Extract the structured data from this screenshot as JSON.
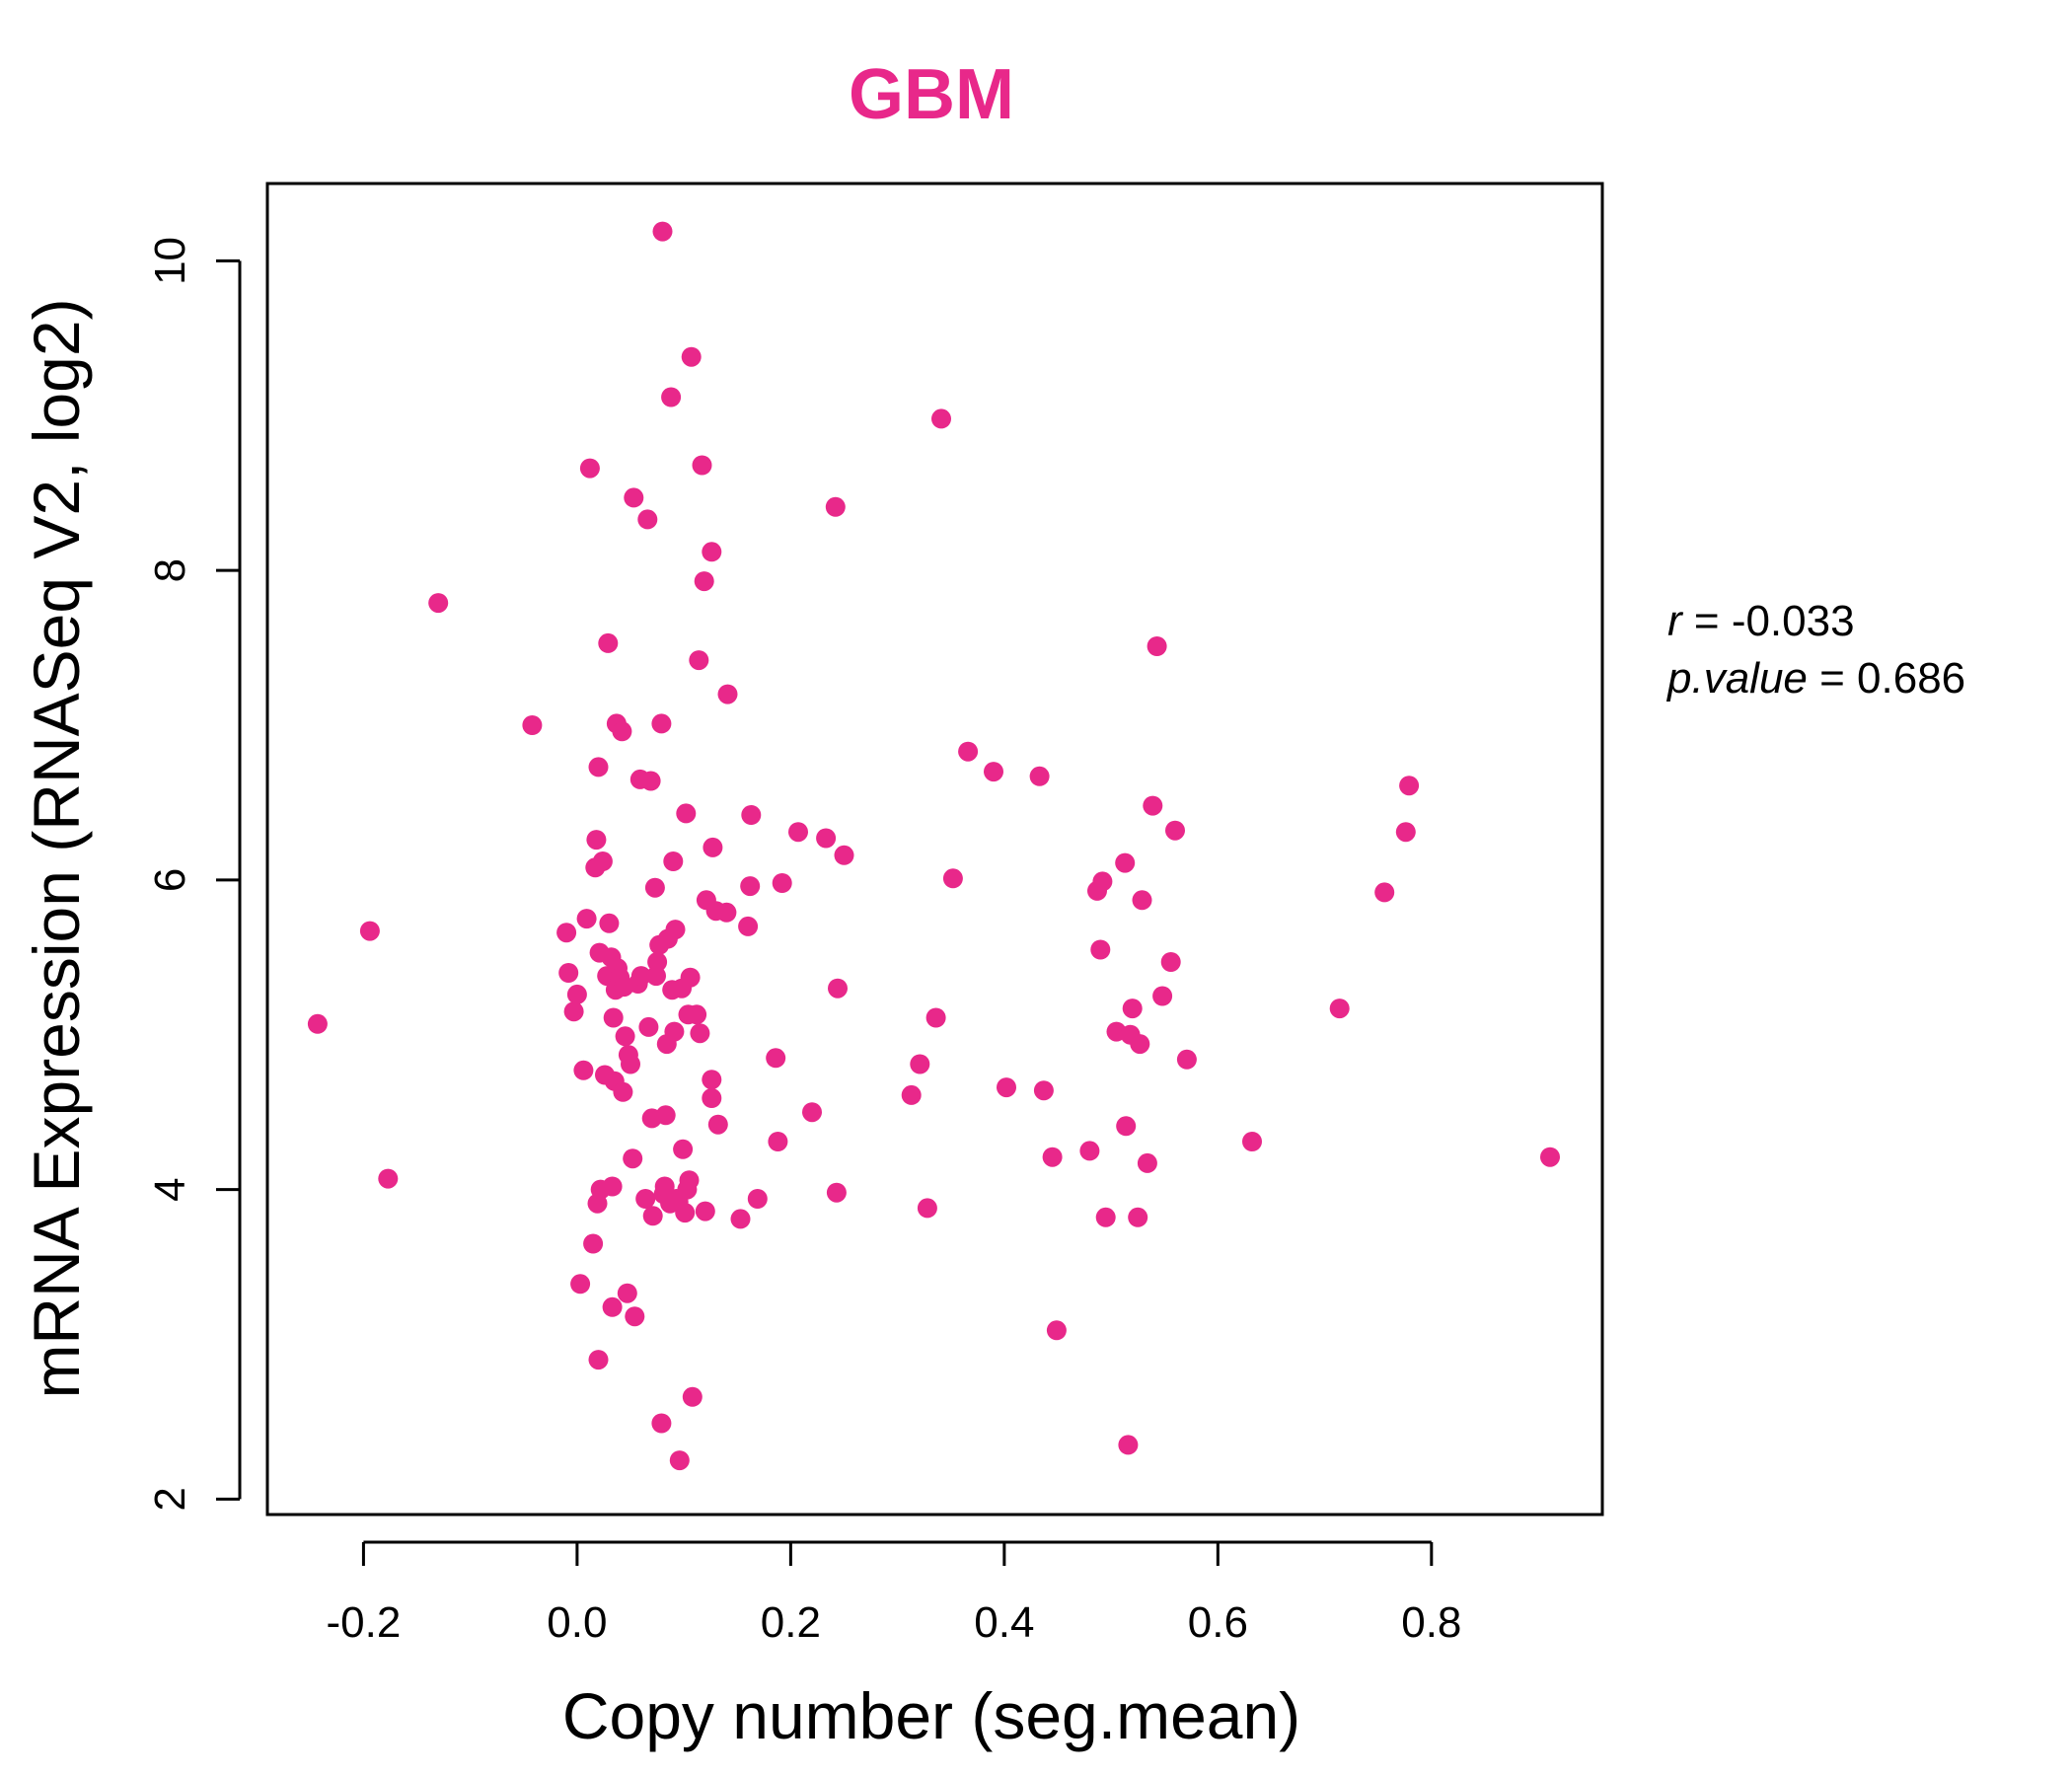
{
  "chart_data": {
    "type": "scatter",
    "title": "GBM",
    "xlabel": "Copy number (seg.mean)",
    "ylabel": "mRNA Expression (RNASeq V2, log2)",
    "xlim": [
      -0.29,
      0.96
    ],
    "ylim": [
      1.9,
      10.5
    ],
    "x_ticks": [
      -0.2,
      0.0,
      0.2,
      0.4,
      0.6,
      0.8
    ],
    "x_tick_labels": [
      "-0.2",
      "0.0",
      "0.2",
      "0.4",
      "0.6",
      "0.8"
    ],
    "y_ticks": [
      2,
      4,
      6,
      8,
      10
    ],
    "y_tick_labels": [
      "2",
      "4",
      "6",
      "8",
      "10"
    ],
    "grid": false,
    "colors": {
      "point": "#e8288a",
      "title": "#e8288a",
      "axis": "#000000"
    },
    "stats": {
      "r_label": "r",
      "r_value": "-0.033",
      "p_label": "p.value",
      "p_value": "0.686"
    },
    "points": [
      [
        -0.243,
        5.07
      ],
      [
        -0.194,
        5.67
      ],
      [
        -0.177,
        4.07
      ],
      [
        -0.13,
        7.79
      ],
      [
        -0.042,
        7.0
      ],
      [
        -0.01,
        5.66
      ],
      [
        -0.008,
        5.4
      ],
      [
        -0.003,
        5.15
      ],
      [
        0.0,
        5.26
      ],
      [
        0.003,
        3.39
      ],
      [
        0.006,
        4.77
      ],
      [
        0.009,
        5.75
      ],
      [
        0.012,
        8.66
      ],
      [
        0.015,
        3.65
      ],
      [
        0.017,
        6.08
      ],
      [
        0.018,
        6.26
      ],
      [
        0.019,
        3.91
      ],
      [
        0.02,
        2.9
      ],
      [
        0.02,
        6.73
      ],
      [
        0.021,
        5.53
      ],
      [
        0.022,
        4.0
      ],
      [
        0.024,
        6.12
      ],
      [
        0.026,
        4.74
      ],
      [
        0.028,
        5.38
      ],
      [
        0.029,
        7.53
      ],
      [
        0.03,
        5.72
      ],
      [
        0.032,
        5.5
      ],
      [
        0.033,
        4.02
      ],
      [
        0.033,
        3.24
      ],
      [
        0.034,
        5.11
      ],
      [
        0.035,
        4.7
      ],
      [
        0.036,
        5.29
      ],
      [
        0.037,
        7.01
      ],
      [
        0.038,
        5.43
      ],
      [
        0.04,
        5.37
      ],
      [
        0.042,
        6.96
      ],
      [
        0.043,
        4.63
      ],
      [
        0.044,
        5.31
      ],
      [
        0.045,
        4.99
      ],
      [
        0.047,
        3.33
      ],
      [
        0.048,
        4.87
      ],
      [
        0.05,
        4.81
      ],
      [
        0.052,
        4.2
      ],
      [
        0.053,
        8.47
      ],
      [
        0.054,
        3.18
      ],
      [
        0.057,
        5.33
      ],
      [
        0.059,
        6.65
      ],
      [
        0.06,
        5.38
      ],
      [
        0.064,
        3.94
      ],
      [
        0.066,
        8.33
      ],
      [
        0.067,
        5.05
      ],
      [
        0.069,
        6.64
      ],
      [
        0.07,
        4.46
      ],
      [
        0.071,
        3.83
      ],
      [
        0.073,
        5.95
      ],
      [
        0.074,
        5.38
      ],
      [
        0.075,
        5.47
      ],
      [
        0.077,
        5.58
      ],
      [
        0.079,
        7.01
      ],
      [
        0.079,
        2.49
      ],
      [
        0.08,
        10.19
      ],
      [
        0.081,
        3.97
      ],
      [
        0.082,
        4.02
      ],
      [
        0.083,
        4.48
      ],
      [
        0.084,
        4.94
      ],
      [
        0.085,
        5.62
      ],
      [
        0.087,
        3.91
      ],
      [
        0.088,
        9.12
      ],
      [
        0.089,
        5.29
      ],
      [
        0.09,
        6.12
      ],
      [
        0.091,
        5.02
      ],
      [
        0.092,
        5.68
      ],
      [
        0.093,
        3.94
      ],
      [
        0.095,
        3.92
      ],
      [
        0.096,
        2.25
      ],
      [
        0.098,
        5.3
      ],
      [
        0.099,
        4.26
      ],
      [
        0.101,
        3.85
      ],
      [
        0.102,
        6.43
      ],
      [
        0.103,
        4.0
      ],
      [
        0.104,
        5.13
      ],
      [
        0.105,
        4.06
      ],
      [
        0.106,
        5.37
      ],
      [
        0.107,
        9.38
      ],
      [
        0.108,
        2.66
      ],
      [
        0.112,
        5.13
      ],
      [
        0.114,
        7.42
      ],
      [
        0.115,
        5.01
      ],
      [
        0.117,
        8.68
      ],
      [
        0.119,
        7.93
      ],
      [
        0.12,
        3.86
      ],
      [
        0.121,
        5.87
      ],
      [
        0.126,
        8.12
      ],
      [
        0.126,
        4.71
      ],
      [
        0.126,
        4.59
      ],
      [
        0.127,
        6.21
      ],
      [
        0.13,
        5.8
      ],
      [
        0.132,
        4.42
      ],
      [
        0.14,
        5.79
      ],
      [
        0.141,
        7.2
      ],
      [
        0.153,
        3.81
      ],
      [
        0.16,
        5.7
      ],
      [
        0.162,
        5.96
      ],
      [
        0.163,
        6.42
      ],
      [
        0.169,
        3.94
      ],
      [
        0.186,
        4.85
      ],
      [
        0.188,
        4.31
      ],
      [
        0.192,
        5.98
      ],
      [
        0.207,
        6.31
      ],
      [
        0.22,
        4.5
      ],
      [
        0.233,
        6.27
      ],
      [
        0.242,
        8.41
      ],
      [
        0.243,
        3.98
      ],
      [
        0.244,
        5.3
      ],
      [
        0.25,
        6.16
      ],
      [
        0.313,
        4.61
      ],
      [
        0.321,
        4.81
      ],
      [
        0.328,
        3.88
      ],
      [
        0.336,
        5.11
      ],
      [
        0.341,
        8.98
      ],
      [
        0.352,
        6.01
      ],
      [
        0.366,
        6.83
      ],
      [
        0.39,
        6.7
      ],
      [
        0.402,
        4.66
      ],
      [
        0.433,
        6.67
      ],
      [
        0.437,
        4.64
      ],
      [
        0.445,
        4.21
      ],
      [
        0.449,
        3.09
      ],
      [
        0.48,
        4.25
      ],
      [
        0.487,
        5.93
      ],
      [
        0.49,
        5.55
      ],
      [
        0.492,
        5.99
      ],
      [
        0.495,
        3.82
      ],
      [
        0.505,
        5.02
      ],
      [
        0.513,
        6.11
      ],
      [
        0.514,
        4.41
      ],
      [
        0.516,
        2.35
      ],
      [
        0.518,
        5.0
      ],
      [
        0.52,
        5.17
      ],
      [
        0.525,
        3.82
      ],
      [
        0.527,
        4.94
      ],
      [
        0.529,
        5.87
      ],
      [
        0.534,
        4.17
      ],
      [
        0.539,
        6.48
      ],
      [
        0.543,
        7.51
      ],
      [
        0.548,
        5.25
      ],
      [
        0.556,
        5.47
      ],
      [
        0.56,
        6.32
      ],
      [
        0.571,
        4.84
      ],
      [
        0.632,
        4.31
      ],
      [
        0.714,
        5.17
      ],
      [
        0.756,
        5.92
      ],
      [
        0.776,
        6.31
      ],
      [
        0.779,
        6.61
      ],
      [
        0.911,
        4.21
      ]
    ]
  }
}
